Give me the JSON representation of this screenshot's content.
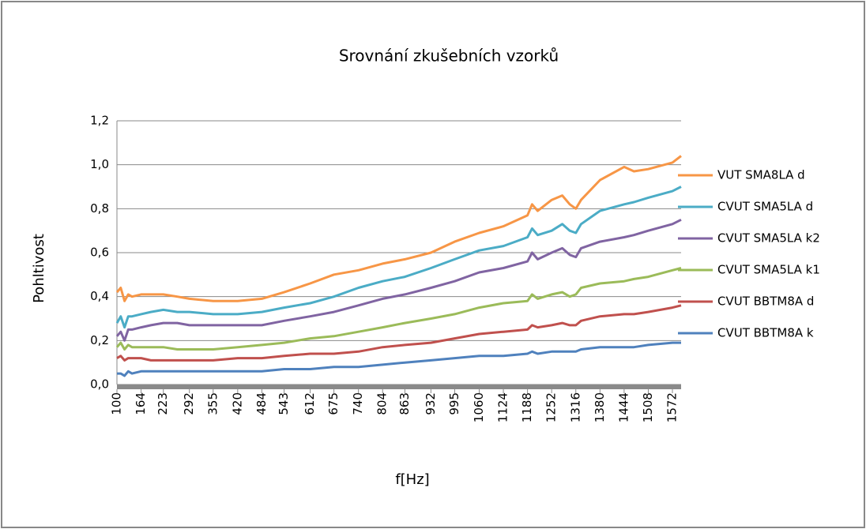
{
  "chart_data": {
    "type": "line",
    "title": "Srovnání zkušebních vzorků",
    "x_label": "f[Hz]",
    "y_label": "Pohltivost",
    "x": [
      100,
      110,
      120,
      130,
      140,
      164,
      190,
      223,
      260,
      292,
      355,
      420,
      484,
      543,
      612,
      675,
      740,
      804,
      863,
      932,
      995,
      1060,
      1124,
      1188,
      1200,
      1215,
      1252,
      1280,
      1300,
      1316,
      1330,
      1380,
      1444,
      1470,
      1508,
      1572,
      1595
    ],
    "series": [
      {
        "name": "VUT SMA8LA d",
        "color": "#f79646",
        "values": [
          0.42,
          0.44,
          0.38,
          0.41,
          0.4,
          0.41,
          0.41,
          0.41,
          0.4,
          0.39,
          0.38,
          0.38,
          0.39,
          0.42,
          0.46,
          0.5,
          0.52,
          0.55,
          0.57,
          0.6,
          0.65,
          0.69,
          0.72,
          0.77,
          0.82,
          0.79,
          0.84,
          0.86,
          0.82,
          0.8,
          0.84,
          0.93,
          0.99,
          0.97,
          0.98,
          1.01,
          1.04
        ]
      },
      {
        "name": "CVUT SMA5LA d",
        "color": "#4bacc6",
        "values": [
          0.28,
          0.31,
          0.26,
          0.31,
          0.31,
          0.32,
          0.33,
          0.34,
          0.33,
          0.33,
          0.32,
          0.32,
          0.33,
          0.35,
          0.37,
          0.4,
          0.44,
          0.47,
          0.49,
          0.53,
          0.57,
          0.61,
          0.63,
          0.67,
          0.71,
          0.68,
          0.7,
          0.73,
          0.7,
          0.69,
          0.73,
          0.79,
          0.82,
          0.83,
          0.85,
          0.88,
          0.9
        ]
      },
      {
        "name": "CVUT SMA5LA k2",
        "color": "#8064a2",
        "values": [
          0.22,
          0.24,
          0.2,
          0.25,
          0.25,
          0.26,
          0.27,
          0.28,
          0.28,
          0.27,
          0.27,
          0.27,
          0.27,
          0.29,
          0.31,
          0.33,
          0.36,
          0.39,
          0.41,
          0.44,
          0.47,
          0.51,
          0.53,
          0.56,
          0.6,
          0.57,
          0.6,
          0.62,
          0.59,
          0.58,
          0.62,
          0.65,
          0.67,
          0.68,
          0.7,
          0.73,
          0.75
        ]
      },
      {
        "name": "CVUT SMA5LA k1",
        "color": "#9bbb59",
        "values": [
          0.17,
          0.19,
          0.16,
          0.18,
          0.17,
          0.17,
          0.17,
          0.17,
          0.16,
          0.16,
          0.16,
          0.17,
          0.18,
          0.19,
          0.21,
          0.22,
          0.24,
          0.26,
          0.28,
          0.3,
          0.32,
          0.35,
          0.37,
          0.38,
          0.41,
          0.39,
          0.41,
          0.42,
          0.4,
          0.41,
          0.44,
          0.46,
          0.47,
          0.48,
          0.49,
          0.52,
          0.53
        ]
      },
      {
        "name": "CVUT BBTM8A d",
        "color": "#c0504d",
        "values": [
          0.12,
          0.13,
          0.11,
          0.12,
          0.12,
          0.12,
          0.11,
          0.11,
          0.11,
          0.11,
          0.11,
          0.12,
          0.12,
          0.13,
          0.14,
          0.14,
          0.15,
          0.17,
          0.18,
          0.19,
          0.21,
          0.23,
          0.24,
          0.25,
          0.27,
          0.26,
          0.27,
          0.28,
          0.27,
          0.27,
          0.29,
          0.31,
          0.32,
          0.32,
          0.33,
          0.35,
          0.36
        ]
      },
      {
        "name": "CVUT BBTM8A k",
        "color": "#4f81bd",
        "values": [
          0.05,
          0.05,
          0.04,
          0.06,
          0.05,
          0.06,
          0.06,
          0.06,
          0.06,
          0.06,
          0.06,
          0.06,
          0.06,
          0.07,
          0.07,
          0.08,
          0.08,
          0.09,
          0.1,
          0.11,
          0.12,
          0.13,
          0.13,
          0.14,
          0.15,
          0.14,
          0.15,
          0.15,
          0.15,
          0.15,
          0.16,
          0.17,
          0.17,
          0.17,
          0.18,
          0.19,
          0.19
        ]
      }
    ],
    "xlim": [
      100,
      1595
    ],
    "xticks": [
      100,
      164,
      223,
      292,
      355,
      420,
      484,
      543,
      612,
      675,
      740,
      804,
      863,
      932,
      995,
      1060,
      1124,
      1188,
      1252,
      1316,
      1380,
      1444,
      1508,
      1572
    ],
    "ylim": [
      0,
      1.2
    ],
    "yticks": [
      {
        "value": 0,
        "label": "0,0"
      },
      {
        "value": 0.2,
        "label": "0,2"
      },
      {
        "value": 0.4,
        "label": "0,4"
      },
      {
        "value": 0.6,
        "label": "0,6"
      },
      {
        "value": 0.8,
        "label": "0,8"
      },
      {
        "value": 1.0,
        "label": "1,0"
      },
      {
        "value": 1.2,
        "label": "1,2"
      }
    ],
    "grid": true,
    "legend": "right"
  }
}
